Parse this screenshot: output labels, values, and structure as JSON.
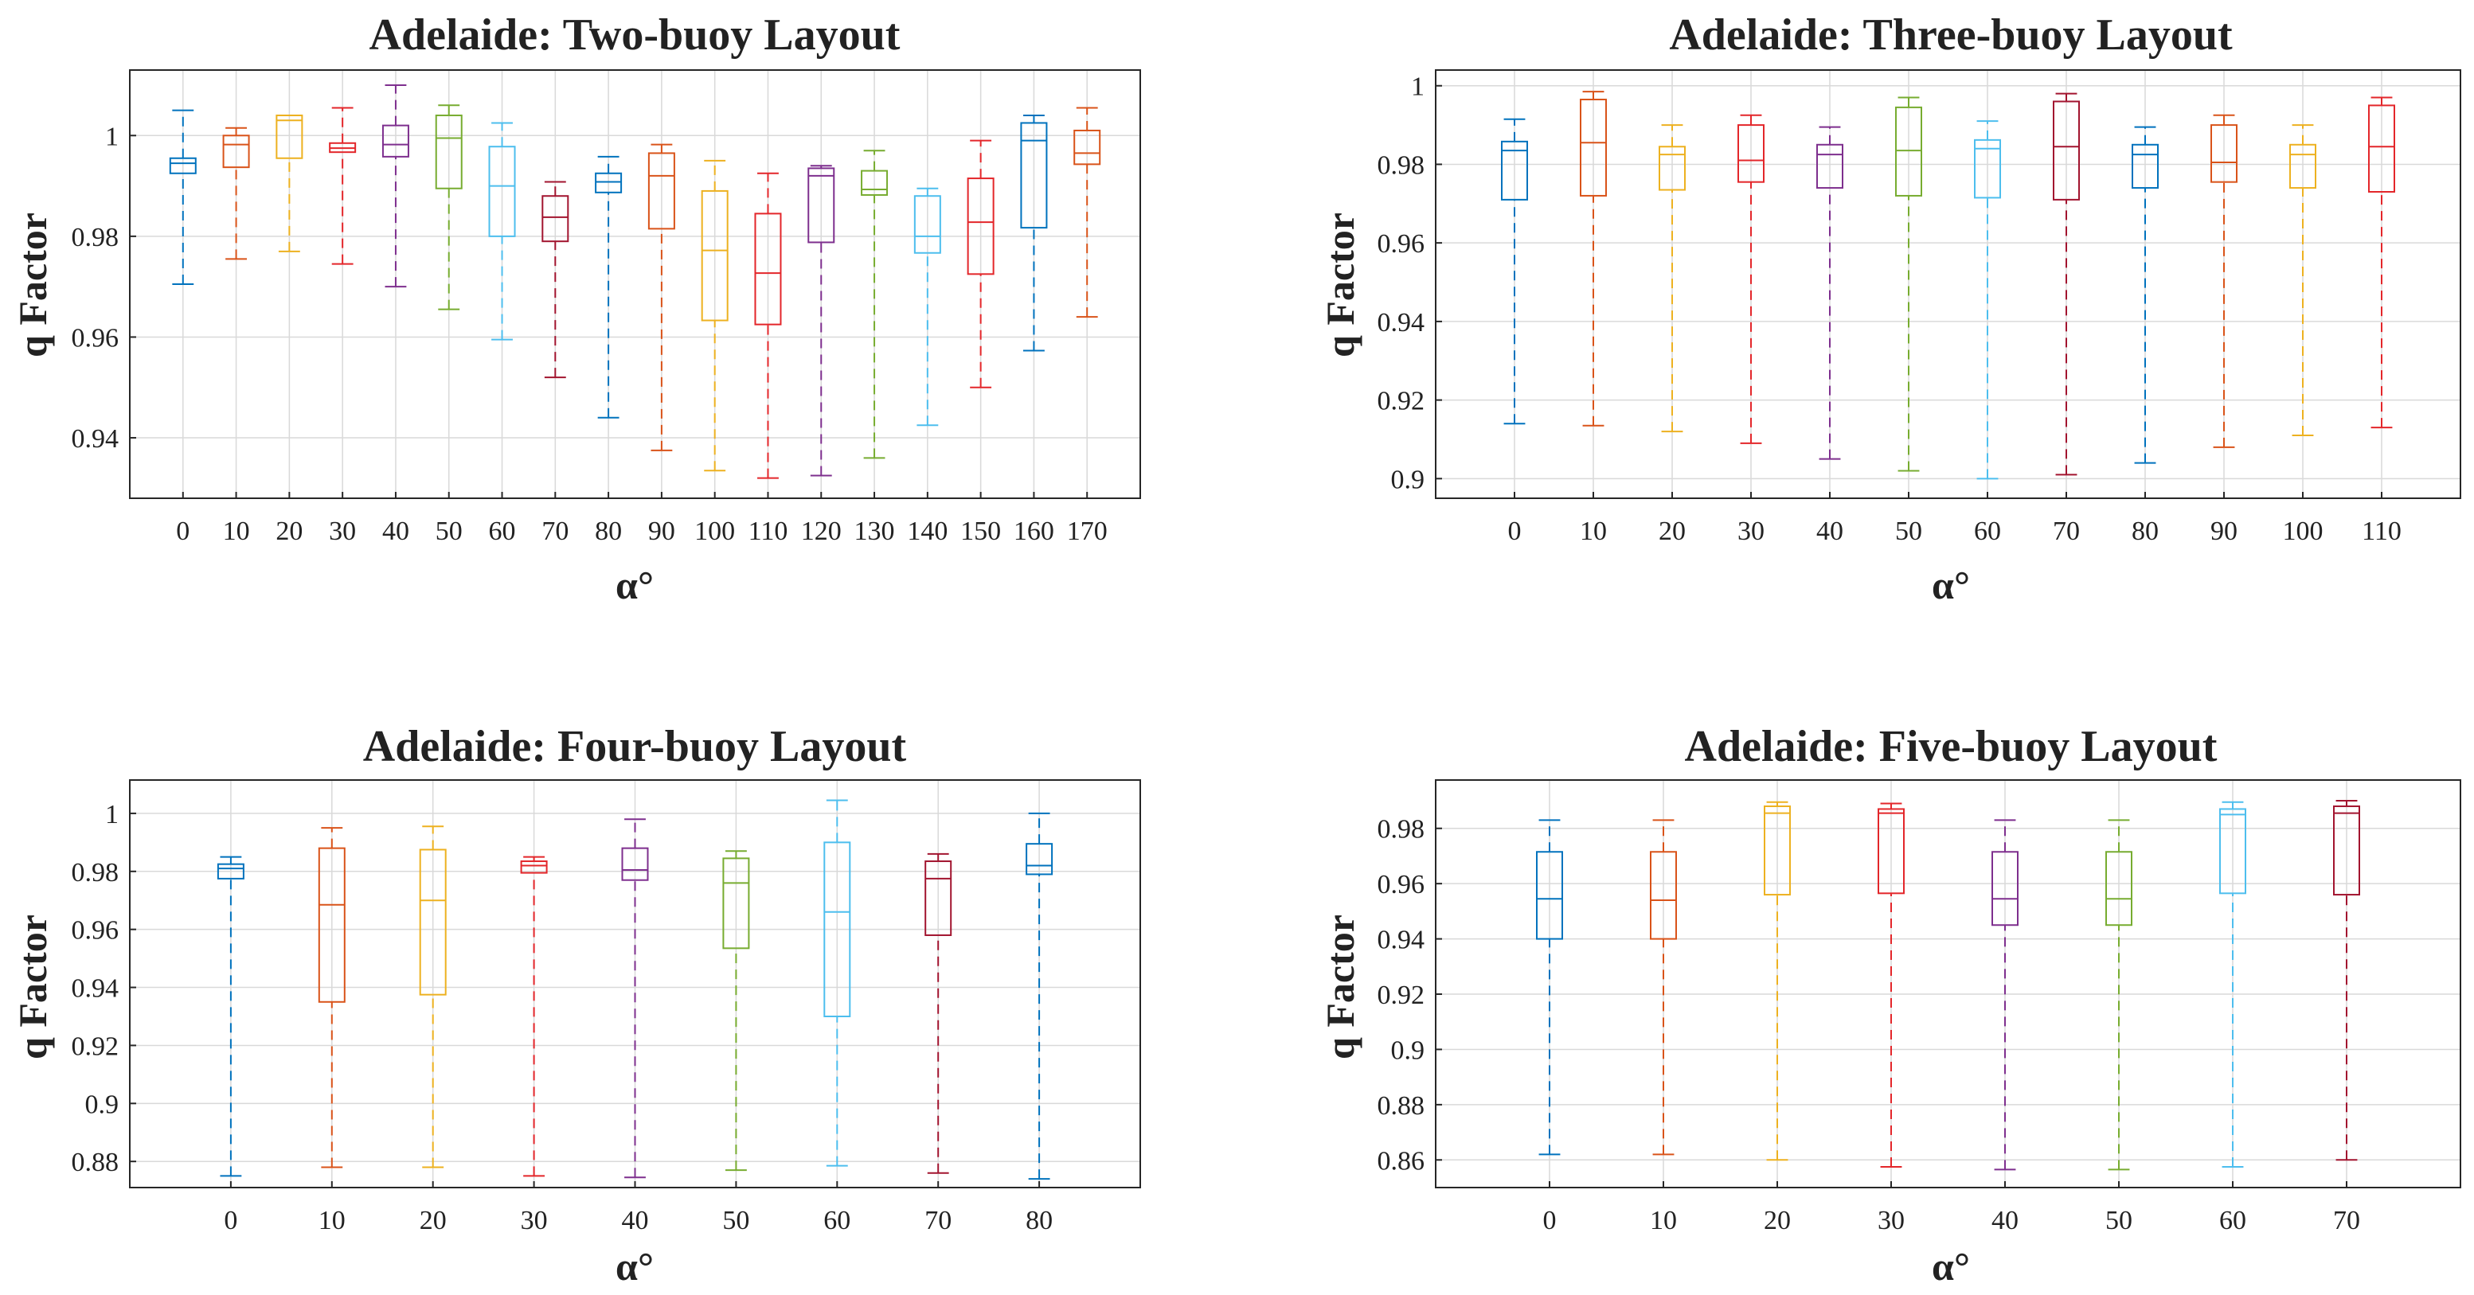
{
  "chart_data": [
    {
      "type": "box",
      "title": "Adelaide: Two-buoy Layout",
      "xlabel": "α°",
      "ylabel": "q Factor",
      "ylim": [
        0.928,
        1.013
      ],
      "yticks": [
        0.94,
        0.96,
        0.98,
        1
      ],
      "ytick_labels": [
        "0.94",
        "0.96",
        "0.98",
        "1"
      ],
      "grid": true,
      "categories": [
        "0",
        "10",
        "20",
        "30",
        "40",
        "50",
        "60",
        "70",
        "80",
        "90",
        "100",
        "110",
        "120",
        "130",
        "140",
        "150",
        "160",
        "170"
      ],
      "boxes": [
        {
          "category": "0",
          "whisker_low": 0.9705,
          "q1": 0.9925,
          "median": 0.9945,
          "q3": 0.9955,
          "whisker_high": 1.005,
          "color": "#0072BD"
        },
        {
          "category": "10",
          "whisker_low": 0.9755,
          "q1": 0.9937,
          "median": 0.9982,
          "q3": 1.0,
          "whisker_high": 1.0015,
          "color": "#D95319"
        },
        {
          "category": "20",
          "whisker_low": 0.977,
          "q1": 0.9955,
          "median": 1.003,
          "q3": 1.004,
          "whisker_high": 1.004,
          "color": "#EDB120"
        },
        {
          "category": "30",
          "whisker_low": 0.9745,
          "q1": 0.9967,
          "median": 0.9975,
          "q3": 0.9985,
          "whisker_high": 1.0055,
          "color": "#E3262A"
        },
        {
          "category": "40",
          "whisker_low": 0.97,
          "q1": 0.9958,
          "median": 0.9982,
          "q3": 1.002,
          "whisker_high": 1.01,
          "color": "#7E2F8E"
        },
        {
          "category": "50",
          "whisker_low": 0.9655,
          "q1": 0.9895,
          "median": 0.9995,
          "q3": 1.004,
          "whisker_high": 1.006,
          "color": "#77AC30"
        },
        {
          "category": "60",
          "whisker_low": 0.9595,
          "q1": 0.98,
          "median": 0.99,
          "q3": 0.9978,
          "whisker_high": 1.0025,
          "color": "#4DBEEE"
        },
        {
          "category": "70",
          "whisker_low": 0.952,
          "q1": 0.979,
          "median": 0.9838,
          "q3": 0.988,
          "whisker_high": 0.9908,
          "color": "#A2142F"
        },
        {
          "category": "80",
          "whisker_low": 0.944,
          "q1": 0.9887,
          "median": 0.9908,
          "q3": 0.9925,
          "whisker_high": 0.9958,
          "color": "#0072BD"
        },
        {
          "category": "90",
          "whisker_low": 0.9375,
          "q1": 0.9815,
          "median": 0.992,
          "q3": 0.9965,
          "whisker_high": 0.9982,
          "color": "#D95319"
        },
        {
          "category": "100",
          "whisker_low": 0.9335,
          "q1": 0.9633,
          "median": 0.9772,
          "q3": 0.989,
          "whisker_high": 0.995,
          "color": "#EDB120"
        },
        {
          "category": "110",
          "whisker_low": 0.932,
          "q1": 0.9625,
          "median": 0.9727,
          "q3": 0.9845,
          "whisker_high": 0.9925,
          "color": "#E3262A"
        },
        {
          "category": "120",
          "whisker_low": 0.9325,
          "q1": 0.9788,
          "median": 0.992,
          "q3": 0.9935,
          "whisker_high": 0.994,
          "color": "#7E2F8E"
        },
        {
          "category": "130",
          "whisker_low": 0.936,
          "q1": 0.9882,
          "median": 0.9893,
          "q3": 0.993,
          "whisker_high": 0.997,
          "color": "#77AC30"
        },
        {
          "category": "140",
          "whisker_low": 0.9425,
          "q1": 0.9767,
          "median": 0.98,
          "q3": 0.988,
          "whisker_high": 0.9895,
          "color": "#4DBEEE"
        },
        {
          "category": "150",
          "whisker_low": 0.95,
          "q1": 0.9725,
          "median": 0.9828,
          "q3": 0.9915,
          "whisker_high": 0.999,
          "color": "#E3262A"
        },
        {
          "category": "160",
          "whisker_low": 0.9573,
          "q1": 0.9817,
          "median": 0.999,
          "q3": 1.0025,
          "whisker_high": 1.004,
          "color": "#0072BD"
        },
        {
          "category": "170",
          "whisker_low": 0.964,
          "q1": 0.9943,
          "median": 0.9965,
          "q3": 1.001,
          "whisker_high": 1.0055,
          "color": "#D95319"
        }
      ]
    },
    {
      "type": "box",
      "title": "Adelaide: Three-buoy Layout",
      "xlabel": "α°",
      "ylabel": "q Factor",
      "ylim": [
        0.895,
        1.004
      ],
      "yticks": [
        0.9,
        0.92,
        0.94,
        0.96,
        0.98,
        1
      ],
      "ytick_labels": [
        "0.9",
        "0.92",
        "0.94",
        "0.96",
        "0.98",
        "1"
      ],
      "grid": true,
      "categories": [
        "0",
        "10",
        "20",
        "30",
        "40",
        "50",
        "60",
        "70",
        "80",
        "90",
        "100",
        "110"
      ],
      "boxes": [
        {
          "category": "0",
          "whisker_low": 0.914,
          "q1": 0.971,
          "median": 0.9835,
          "q3": 0.9858,
          "whisker_high": 0.9915,
          "color": "#0072BD"
        },
        {
          "category": "10",
          "whisker_low": 0.9135,
          "q1": 0.972,
          "median": 0.9855,
          "q3": 0.9965,
          "whisker_high": 0.9985,
          "color": "#D95319"
        },
        {
          "category": "20",
          "whisker_low": 0.912,
          "q1": 0.9735,
          "median": 0.9825,
          "q3": 0.9845,
          "whisker_high": 0.99,
          "color": "#EDB120"
        },
        {
          "category": "30",
          "whisker_low": 0.909,
          "q1": 0.9755,
          "median": 0.981,
          "q3": 0.99,
          "whisker_high": 0.9925,
          "color": "#E3262A"
        },
        {
          "category": "40",
          "whisker_low": 0.905,
          "q1": 0.974,
          "median": 0.9825,
          "q3": 0.985,
          "whisker_high": 0.9895,
          "color": "#7E2F8E"
        },
        {
          "category": "50",
          "whisker_low": 0.902,
          "q1": 0.972,
          "median": 0.9835,
          "q3": 0.9945,
          "whisker_high": 0.997,
          "color": "#77AC30"
        },
        {
          "category": "60",
          "whisker_low": 0.9,
          "q1": 0.9715,
          "median": 0.984,
          "q3": 0.9862,
          "whisker_high": 0.991,
          "color": "#4DBEEE"
        },
        {
          "category": "70",
          "whisker_low": 0.901,
          "q1": 0.971,
          "median": 0.9845,
          "q3": 0.996,
          "whisker_high": 0.998,
          "color": "#A2142F"
        },
        {
          "category": "80",
          "whisker_low": 0.904,
          "q1": 0.974,
          "median": 0.9825,
          "q3": 0.985,
          "whisker_high": 0.9895,
          "color": "#0072BD"
        },
        {
          "category": "90",
          "whisker_low": 0.908,
          "q1": 0.9755,
          "median": 0.9805,
          "q3": 0.99,
          "whisker_high": 0.9925,
          "color": "#D95319"
        },
        {
          "category": "100",
          "whisker_low": 0.911,
          "q1": 0.974,
          "median": 0.9825,
          "q3": 0.985,
          "whisker_high": 0.99,
          "color": "#EDB120"
        },
        {
          "category": "110",
          "whisker_low": 0.913,
          "q1": 0.973,
          "median": 0.9845,
          "q3": 0.995,
          "whisker_high": 0.997,
          "color": "#E3262A"
        }
      ]
    },
    {
      "type": "box",
      "title": "Adelaide: Four-buoy Layout",
      "xlabel": "α°",
      "ylabel": "q Factor",
      "ylim": [
        0.871,
        1.0115
      ],
      "yticks": [
        0.88,
        0.9,
        0.92,
        0.94,
        0.96,
        0.98,
        1
      ],
      "ytick_labels": [
        "0.88",
        "0.9",
        "0.92",
        "0.94",
        "0.96",
        "0.98",
        "1"
      ],
      "grid": true,
      "categories": [
        "0",
        "10",
        "20",
        "30",
        "40",
        "50",
        "60",
        "70",
        "80"
      ],
      "boxes": [
        {
          "category": "0",
          "whisker_low": 0.875,
          "q1": 0.9775,
          "median": 0.981,
          "q3": 0.9825,
          "whisker_high": 0.985,
          "color": "#0072BD"
        },
        {
          "category": "10",
          "whisker_low": 0.878,
          "q1": 0.935,
          "median": 0.9685,
          "q3": 0.988,
          "whisker_high": 0.995,
          "color": "#D95319"
        },
        {
          "category": "20",
          "whisker_low": 0.878,
          "q1": 0.9375,
          "median": 0.97,
          "q3": 0.9875,
          "whisker_high": 0.9955,
          "color": "#EDB120"
        },
        {
          "category": "30",
          "whisker_low": 0.875,
          "q1": 0.9795,
          "median": 0.982,
          "q3": 0.9835,
          "whisker_high": 0.985,
          "color": "#E3262A"
        },
        {
          "category": "40",
          "whisker_low": 0.8745,
          "q1": 0.977,
          "median": 0.9805,
          "q3": 0.988,
          "whisker_high": 0.998,
          "color": "#7E2F8E"
        },
        {
          "category": "50",
          "whisker_low": 0.877,
          "q1": 0.9535,
          "median": 0.976,
          "q3": 0.9845,
          "whisker_high": 0.987,
          "color": "#77AC30"
        },
        {
          "category": "60",
          "whisker_low": 0.8785,
          "q1": 0.93,
          "median": 0.966,
          "q3": 0.99,
          "whisker_high": 1.0045,
          "color": "#4DBEEE"
        },
        {
          "category": "70",
          "whisker_low": 0.876,
          "q1": 0.958,
          "median": 0.9775,
          "q3": 0.9835,
          "whisker_high": 0.986,
          "color": "#A2142F"
        },
        {
          "category": "80",
          "whisker_low": 0.874,
          "q1": 0.979,
          "median": 0.982,
          "q3": 0.9895,
          "whisker_high": 1.0,
          "color": "#0072BD"
        }
      ]
    },
    {
      "type": "box",
      "title": "Adelaide: Five-buoy Layout",
      "xlabel": "α°",
      "ylabel": "q Factor",
      "ylim": [
        0.85,
        0.9975
      ],
      "yticks": [
        0.86,
        0.88,
        0.9,
        0.92,
        0.94,
        0.96,
        0.98
      ],
      "ytick_labels": [
        "0.86",
        "0.88",
        "0.9",
        "0.92",
        "0.94",
        "0.96",
        "0.98"
      ],
      "grid": true,
      "categories": [
        "0",
        "10",
        "20",
        "30",
        "40",
        "50",
        "60",
        "70"
      ],
      "boxes": [
        {
          "category": "0",
          "whisker_low": 0.862,
          "q1": 0.94,
          "median": 0.9545,
          "q3": 0.9715,
          "whisker_high": 0.983,
          "color": "#0072BD"
        },
        {
          "category": "10",
          "whisker_low": 0.862,
          "q1": 0.94,
          "median": 0.954,
          "q3": 0.9715,
          "whisker_high": 0.983,
          "color": "#D95319"
        },
        {
          "category": "20",
          "whisker_low": 0.86,
          "q1": 0.956,
          "median": 0.9855,
          "q3": 0.988,
          "whisker_high": 0.9895,
          "color": "#EDB120"
        },
        {
          "category": "30",
          "whisker_low": 0.8575,
          "q1": 0.9565,
          "median": 0.9855,
          "q3": 0.987,
          "whisker_high": 0.989,
          "color": "#E3262A"
        },
        {
          "category": "40",
          "whisker_low": 0.8565,
          "q1": 0.945,
          "median": 0.9545,
          "q3": 0.9715,
          "whisker_high": 0.983,
          "color": "#7E2F8E"
        },
        {
          "category": "50",
          "whisker_low": 0.8565,
          "q1": 0.945,
          "median": 0.9545,
          "q3": 0.9715,
          "whisker_high": 0.983,
          "color": "#77AC30"
        },
        {
          "category": "60",
          "whisker_low": 0.8575,
          "q1": 0.9565,
          "median": 0.985,
          "q3": 0.987,
          "whisker_high": 0.9895,
          "color": "#4DBEEE"
        },
        {
          "category": "70",
          "whisker_low": 0.86,
          "q1": 0.956,
          "median": 0.9855,
          "q3": 0.988,
          "whisker_high": 0.99,
          "color": "#A2142F"
        }
      ]
    }
  ]
}
